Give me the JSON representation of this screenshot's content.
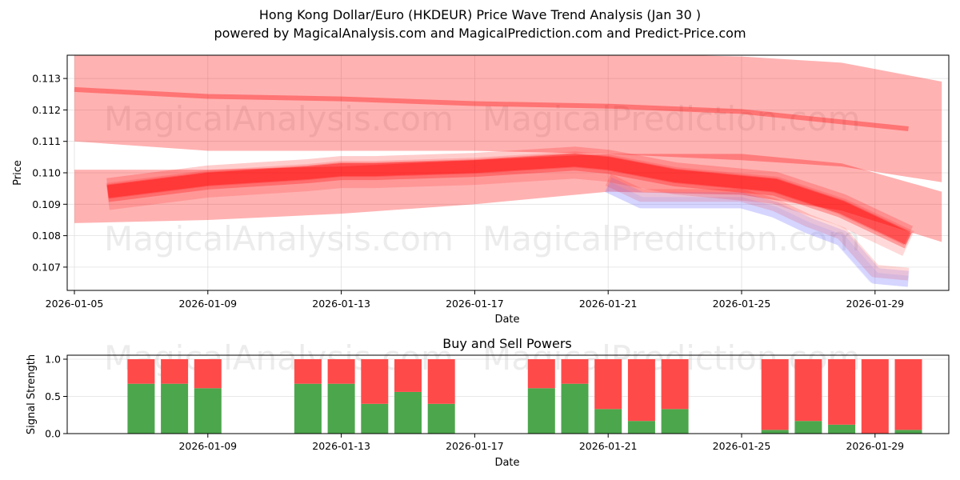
{
  "header": {
    "title": "Hong Kong Dollar/Euro (HKDEUR) Price Wave Trend Analysis (Jan 30 )",
    "subtitle": "powered by MagicalAnalysis.com and MagicalPrediction.com and Predict-Price.com"
  },
  "watermarks": [
    "MagicalAnalysis.com",
    "MagicalPrediction.com"
  ],
  "colors": {
    "band": "#ff0000",
    "band_alt": "#6a6aff",
    "buy": "#4ca64c",
    "sell": "#ff4a4a",
    "grid": "#e0e0e0"
  },
  "chart_data": [
    {
      "type": "area",
      "title": "Hong Kong Dollar/Euro (HKDEUR) Price Wave Trend Analysis (Jan 30 )",
      "xlabel": "Date",
      "ylabel": "Price",
      "x_ticks": [
        "2026-01-05",
        "2026-01-09",
        "2026-01-13",
        "2026-01-17",
        "2026-01-21",
        "2026-01-25",
        "2026-01-29"
      ],
      "y_ticks": [
        "0.107",
        "0.108",
        "0.109",
        "0.110",
        "0.111",
        "0.112",
        "0.113"
      ],
      "ylim": [
        0.1063,
        0.1137
      ],
      "xlim": [
        "2026-01-05",
        "2026-01-31"
      ],
      "grid": true,
      "series": [
        {
          "name": "upper-wave-band",
          "x": [
            "2026-01-05",
            "2026-01-09",
            "2026-01-13",
            "2026-01-17",
            "2026-01-21",
            "2026-01-25",
            "2026-01-28",
            "2026-01-31"
          ],
          "upper": [
            0.1138,
            0.1138,
            0.1138,
            0.1138,
            0.1138,
            0.1137,
            0.1135,
            0.1129
          ],
          "lower": [
            0.111,
            0.1107,
            0.1107,
            0.1107,
            0.1106,
            0.1104,
            0.1102,
            0.1097
          ]
        },
        {
          "name": "upper-wave-center",
          "x": [
            "2026-01-05",
            "2026-01-09",
            "2026-01-13",
            "2026-01-17",
            "2026-01-21",
            "2026-01-25",
            "2026-01-30"
          ],
          "values": [
            0.11265,
            0.11243,
            0.11235,
            0.1122,
            0.11212,
            0.11195,
            0.1114
          ]
        },
        {
          "name": "lower-wave-band",
          "x": [
            "2026-01-05",
            "2026-01-09",
            "2026-01-13",
            "2026-01-17",
            "2026-01-21",
            "2026-01-25",
            "2026-01-28",
            "2026-01-31"
          ],
          "upper": [
            0.1101,
            0.1101,
            0.1102,
            0.1104,
            0.1106,
            0.1106,
            0.1103,
            0.1094
          ],
          "lower": [
            0.1084,
            0.1085,
            0.1087,
            0.109,
            0.1094,
            0.1093,
            0.1088,
            0.1078
          ]
        },
        {
          "name": "price-wave-main",
          "x": [
            "2026-01-06",
            "2026-01-09",
            "2026-01-12",
            "2026-01-13",
            "2026-01-14",
            "2026-01-17",
            "2026-01-20",
            "2026-01-21",
            "2026-01-23",
            "2026-01-26",
            "2026-01-28",
            "2026-01-30"
          ],
          "values": [
            0.1094,
            0.1098,
            0.11,
            0.1101,
            0.1101,
            0.1102,
            0.1104,
            0.1103,
            0.1099,
            0.1096,
            0.1089,
            0.1079
          ]
        },
        {
          "name": "price-wave-low-scenarios",
          "x": [
            "2026-01-21",
            "2026-01-22",
            "2026-01-25",
            "2026-01-26",
            "2026-01-27",
            "2026-01-28",
            "2026-01-29",
            "2026-01-30"
          ],
          "values": [
            0.1097,
            0.1092,
            0.1092,
            0.1089,
            0.1084,
            0.108,
            0.1068,
            0.1067
          ]
        }
      ]
    },
    {
      "type": "bar",
      "title": "Buy and Sell Powers",
      "xlabel": "Date",
      "ylabel": "Signal Strength",
      "y_ticks": [
        "0.0",
        "0.5",
        "1.0"
      ],
      "x_ticks": [
        "2026-01-09",
        "2026-01-13",
        "2026-01-17",
        "2026-01-21",
        "2026-01-25",
        "2026-01-29"
      ],
      "ylim": [
        0,
        1.05
      ],
      "stacked": true,
      "categories": [
        "2026-01-07",
        "2026-01-08",
        "2026-01-09",
        "2026-01-12",
        "2026-01-13",
        "2026-01-14",
        "2026-01-15",
        "2026-01-16",
        "2026-01-19",
        "2026-01-20",
        "2026-01-21",
        "2026-01-22",
        "2026-01-23",
        "2026-01-26",
        "2026-01-27",
        "2026-01-28",
        "2026-01-29",
        "2026-01-30"
      ],
      "series": [
        {
          "name": "Buy",
          "color": "#4ca64c",
          "values": [
            0.67,
            0.67,
            0.61,
            0.67,
            0.67,
            0.4,
            0.56,
            0.4,
            0.61,
            0.67,
            0.33,
            0.17,
            0.33,
            0.05,
            0.17,
            0.12,
            0.0,
            0.05
          ]
        },
        {
          "name": "Sell",
          "color": "#ff4a4a",
          "values": [
            0.33,
            0.33,
            0.39,
            0.33,
            0.33,
            0.6,
            0.44,
            0.6,
            0.39,
            0.33,
            0.67,
            0.83,
            0.67,
            0.95,
            0.83,
            0.88,
            1.0,
            0.95
          ]
        }
      ]
    }
  ]
}
